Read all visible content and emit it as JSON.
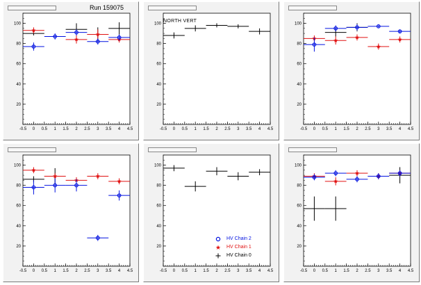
{
  "colors": {
    "chain0": "#000000",
    "chain1": "#e01010",
    "chain2": "#0010e0"
  },
  "chart_data": [
    {
      "type": "scatter",
      "title": "Run 159075",
      "xlim": [
        -0.5,
        4.5
      ],
      "ylim": [
        0,
        110
      ],
      "x_ticks": [
        "-0.5",
        "0",
        "0.5",
        "1",
        "1.5",
        "2",
        "2.5",
        "3",
        "3.5",
        "4",
        "4.5"
      ],
      "y_ticks": [
        "20",
        "40",
        "60",
        "80",
        "100"
      ],
      "series": [
        {
          "key": "chain0",
          "x": [
            0,
            2,
            3,
            4
          ],
          "y": [
            90,
            94,
            89,
            95
          ],
          "yerr": [
            2,
            6,
            7,
            6
          ]
        },
        {
          "key": "chain1",
          "x": [
            0,
            2,
            3,
            4
          ],
          "y": [
            93,
            84,
            89,
            84
          ],
          "yerr": [
            3,
            4,
            5,
            3
          ]
        },
        {
          "key": "chain2",
          "x": [
            0,
            1,
            2,
            3,
            4
          ],
          "y": [
            77,
            87,
            91,
            82,
            86
          ],
          "yerr": [
            4,
            3,
            3,
            3,
            3
          ]
        }
      ]
    },
    {
      "type": "scatter",
      "annotation": "NORTH VERT",
      "xlim": [
        -0.5,
        4.5
      ],
      "ylim": [
        0,
        110
      ],
      "x_ticks": [
        "-0.5",
        "0",
        "0.5",
        "1",
        "1.5",
        "2",
        "2.5",
        "3",
        "3.5",
        "4",
        "4.5"
      ],
      "y_ticks": [
        "20",
        "40",
        "60",
        "80",
        "100"
      ],
      "series": [
        {
          "key": "chain0",
          "x": [
            0,
            1,
            2,
            3,
            4
          ],
          "y": [
            88,
            95,
            98,
            97,
            92
          ],
          "yerr": [
            3,
            3,
            2,
            2,
            3
          ]
        }
      ]
    },
    {
      "type": "scatter",
      "xlim": [
        -0.5,
        4.5
      ],
      "ylim": [
        0,
        110
      ],
      "x_ticks": [
        "-0.5",
        "0",
        "0.5",
        "1",
        "1.5",
        "2",
        "2.5",
        "3",
        "3.5",
        "4",
        "4.5"
      ],
      "y_ticks": [
        "20",
        "40",
        "60",
        "80",
        "100"
      ],
      "series": [
        {
          "key": "chain0",
          "x": [
            1,
            2
          ],
          "y": [
            91,
            96
          ],
          "yerr": [
            4,
            4
          ]
        },
        {
          "key": "chain1",
          "x": [
            0,
            1,
            2,
            3,
            4
          ],
          "y": [
            85,
            83,
            86,
            77,
            84
          ],
          "yerr": [
            3,
            4,
            3,
            3,
            3
          ]
        },
        {
          "key": "chain2",
          "x": [
            0,
            1,
            2,
            3,
            4
          ],
          "y": [
            79,
            95,
            96,
            97,
            92
          ],
          "yerr": [
            7,
            3,
            3,
            1,
            2
          ]
        }
      ]
    },
    {
      "type": "scatter",
      "xlim": [
        -0.5,
        4.5
      ],
      "ylim": [
        0,
        110
      ],
      "x_ticks": [
        "-0.5",
        "0",
        "0.5",
        "1",
        "1.5",
        "2",
        "2.5",
        "3",
        "3.5",
        "4",
        "4.5"
      ],
      "y_ticks": [
        "20",
        "40",
        "60",
        "80",
        "100"
      ],
      "series": [
        {
          "key": "chain0",
          "x": [
            0,
            1
          ],
          "y": [
            86,
            89
          ],
          "yerr": [
            3,
            8
          ]
        },
        {
          "key": "chain1",
          "x": [
            0,
            1,
            2,
            3,
            4
          ],
          "y": [
            95,
            89,
            85,
            89,
            84
          ],
          "yerr": [
            3,
            3,
            3,
            3,
            3
          ]
        },
        {
          "key": "chain2",
          "x": [
            0,
            1,
            2,
            3,
            4
          ],
          "y": [
            78,
            80,
            80,
            28,
            70
          ],
          "yerr": [
            7,
            7,
            6,
            3,
            5
          ]
        }
      ]
    },
    {
      "type": "scatter",
      "xlim": [
        -0.5,
        4.5
      ],
      "ylim": [
        0,
        110
      ],
      "x_ticks": [
        "-0.5",
        "0",
        "0.5",
        "1",
        "1.5",
        "2",
        "2.5",
        "3",
        "3.5",
        "4",
        "4.5"
      ],
      "y_ticks": [
        "20",
        "40",
        "60",
        "80",
        "100"
      ],
      "series": [
        {
          "key": "chain0",
          "x": [
            0,
            1,
            2,
            3,
            4
          ],
          "y": [
            97,
            79,
            94,
            89,
            93
          ],
          "yerr": [
            3,
            5,
            4,
            4,
            3
          ]
        }
      ],
      "legend": [
        {
          "key": "chain2",
          "label": "HV Chain 2",
          "marker": "circle"
        },
        {
          "key": "chain1",
          "label": "HV Chain 1",
          "marker": "star"
        },
        {
          "key": "chain0",
          "label": "HV Chain 0",
          "marker": "cross"
        }
      ]
    },
    {
      "type": "scatter",
      "xlim": [
        -0.5,
        4.5
      ],
      "ylim": [
        0,
        110
      ],
      "x_ticks": [
        "-0.5",
        "0",
        "0.5",
        "1",
        "1.5",
        "2",
        "2.5",
        "3",
        "3.5",
        "4",
        "4.5"
      ],
      "y_ticks": [
        "20",
        "40",
        "60",
        "80",
        "100"
      ],
      "series": [
        {
          "key": "chain0",
          "x": [
            0,
            1,
            4
          ],
          "y": [
            57,
            57,
            90
          ],
          "yerr": [
            12,
            12,
            8
          ]
        },
        {
          "key": "chain1",
          "x": [
            0,
            1,
            2,
            3,
            4
          ],
          "y": [
            89,
            84,
            92,
            89,
            92
          ],
          "yerr": [
            3,
            4,
            3,
            3,
            3
          ]
        },
        {
          "key": "chain2",
          "x": [
            0,
            1,
            2,
            3,
            4
          ],
          "y": [
            88,
            92,
            86,
            89,
            92
          ],
          "yerr": [
            3,
            3,
            3,
            3,
            3
          ]
        }
      ]
    }
  ]
}
